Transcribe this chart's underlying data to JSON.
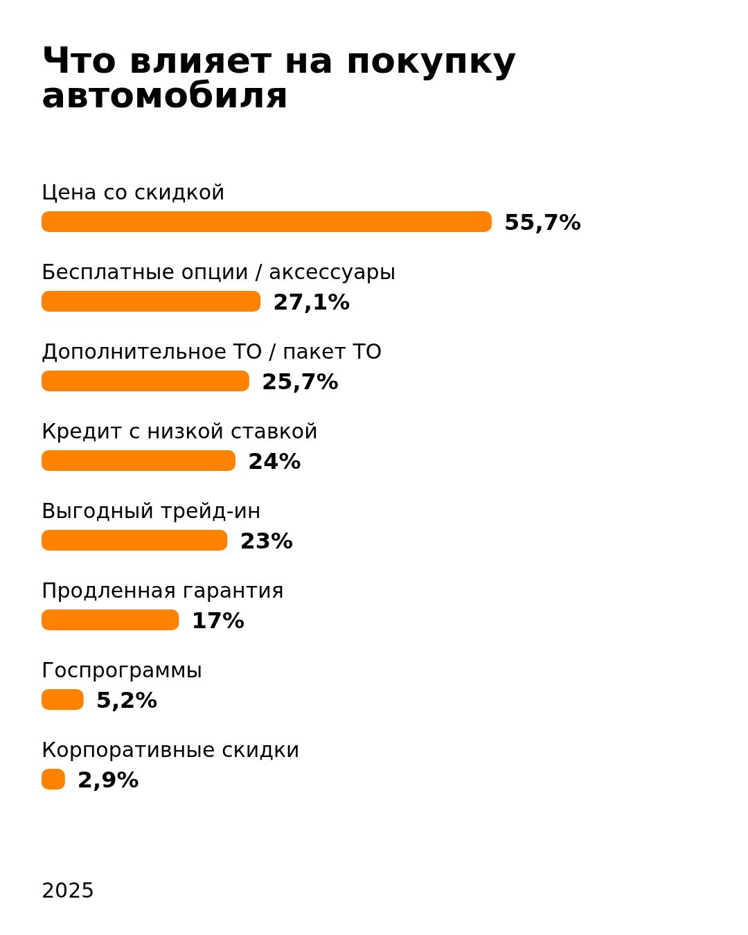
{
  "chart_data": {
    "type": "bar",
    "orientation": "horizontal",
    "title": "Что влияет на покупку автомобиля",
    "categories": [
      "Цена со скидкой",
      "Бесплатные опции / аксессуары",
      "Дополнительное ТО / пакет ТО",
      "Кредит с низкой ставкой",
      "Выгодный трейд-ин",
      "Продленная гарантия",
      "Госпрограммы",
      "Корпоративные скидки"
    ],
    "values": [
      55.7,
      27.1,
      25.7,
      24,
      23,
      17,
      5.2,
      2.9
    ],
    "value_labels": [
      "55,7%",
      "27,1%",
      "25,7%",
      "24%",
      "23%",
      "17%",
      "5,2%",
      "2,9%"
    ],
    "color": "#ff8300",
    "tick_labels": "y",
    "annotations": [
      "2025"
    ]
  }
}
